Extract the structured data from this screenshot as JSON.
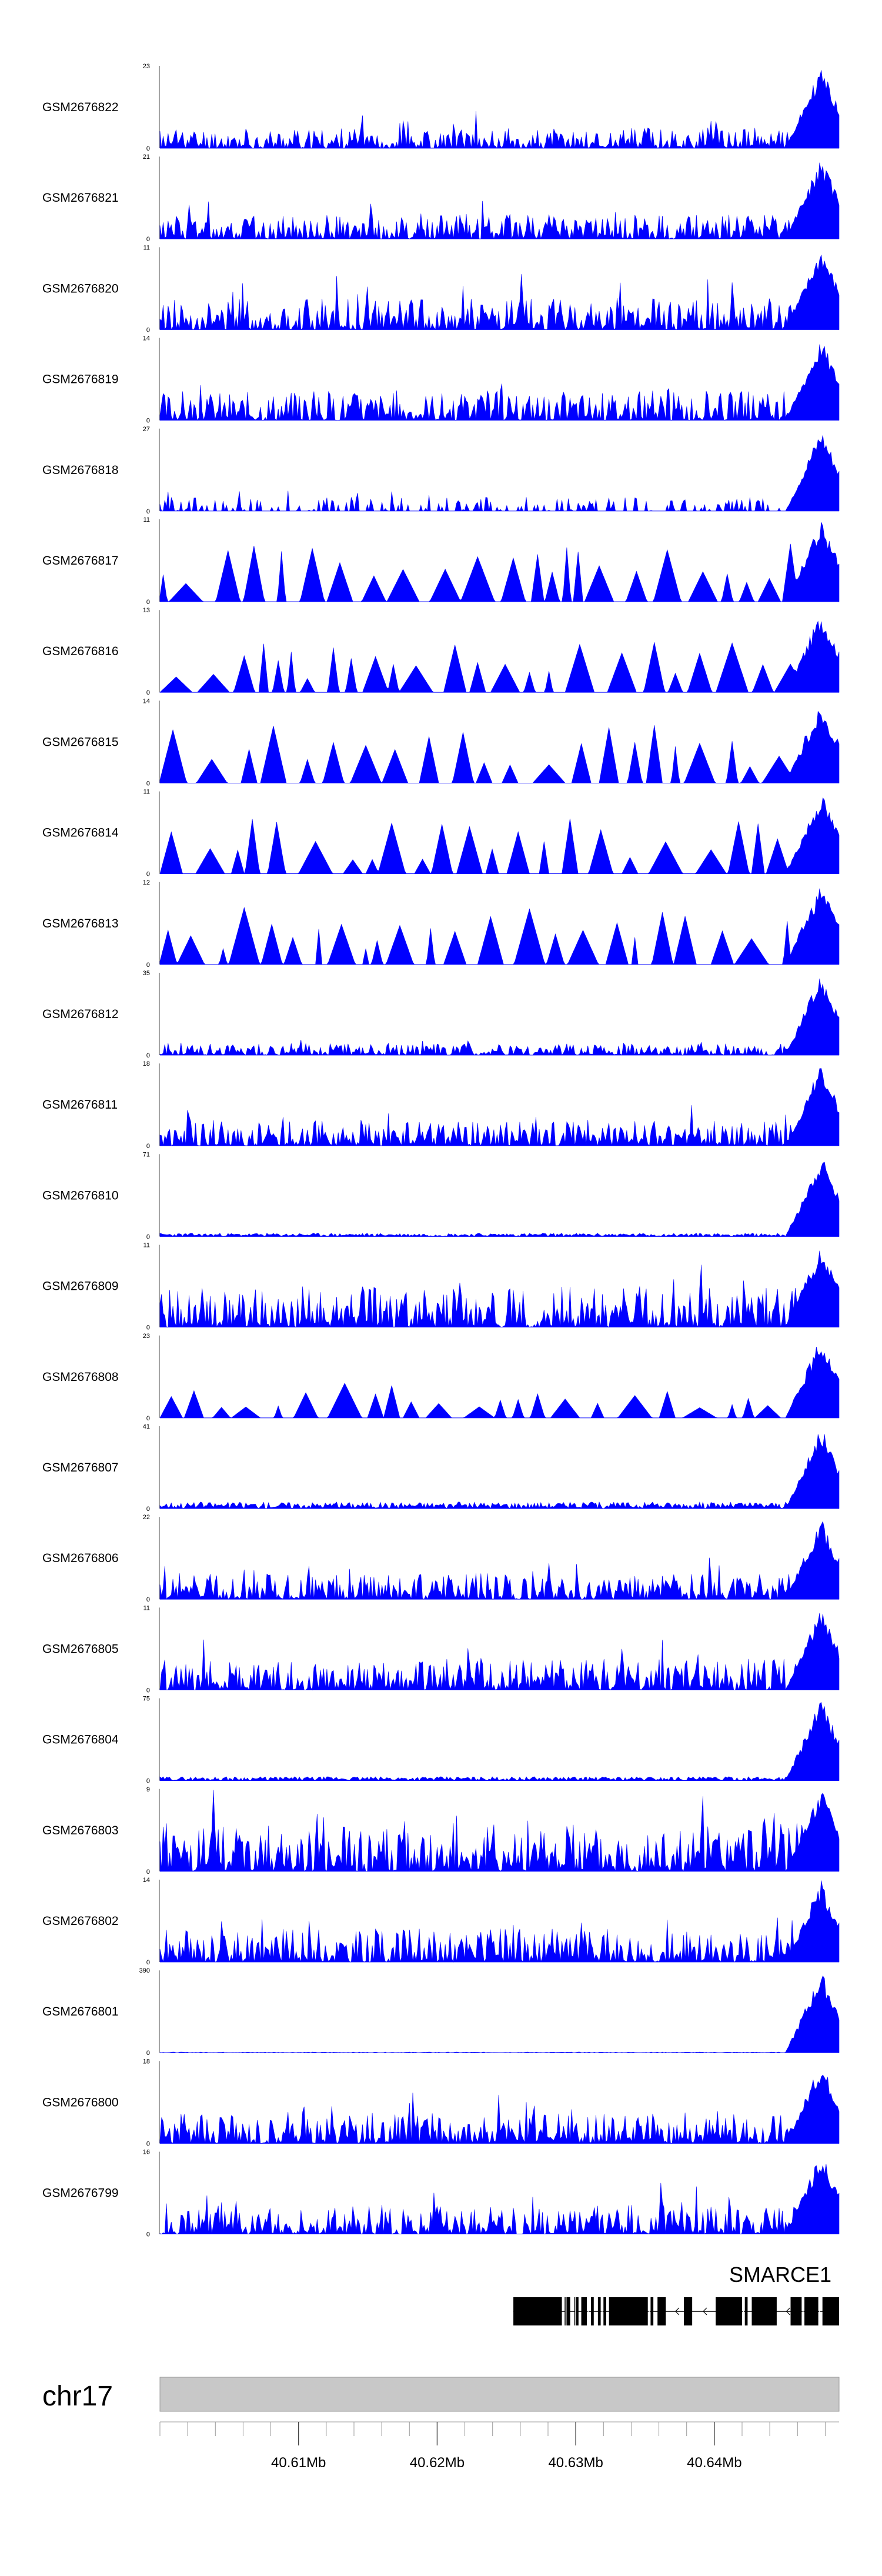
{
  "chart_data": {
    "type": "area",
    "fill_color": "#0000ff",
    "chromosome": "chr17",
    "x_range_mb": [
      40.6,
      40.649
    ],
    "x_ticks": [
      {
        "value": 40.61,
        "label": "40.61Mb"
      },
      {
        "value": 40.62,
        "label": "40.62Mb"
      },
      {
        "value": 40.63,
        "label": "40.63Mb"
      },
      {
        "value": 40.64,
        "label": "40.64Mb"
      }
    ],
    "series": [
      {
        "name": "GSM2676822",
        "ymax": 23,
        "ymin": 0,
        "style": "dense",
        "seed": 11,
        "amp": 0.28
      },
      {
        "name": "GSM2676821",
        "ymax": 21,
        "ymin": 0,
        "style": "dense",
        "seed": 12,
        "amp": 0.33
      },
      {
        "name": "GSM2676820",
        "ymax": 11,
        "ymin": 0,
        "style": "dense",
        "seed": 13,
        "amp": 0.42
      },
      {
        "name": "GSM2676819",
        "ymax": 14,
        "ymin": 0,
        "style": "dense",
        "seed": 14,
        "amp": 0.4
      },
      {
        "name": "GSM2676818",
        "ymax": 27,
        "ymin": 0,
        "style": "sparse",
        "seed": 15,
        "amp": 0.28
      },
      {
        "name": "GSM2676817",
        "ymax": 11,
        "ymin": 0,
        "style": "spiky",
        "seed": 16,
        "amp": 0.72
      },
      {
        "name": "GSM2676816",
        "ymax": 13,
        "ymin": 0,
        "style": "spiky",
        "seed": 17,
        "amp": 0.62
      },
      {
        "name": "GSM2676815",
        "ymax": 14,
        "ymin": 0,
        "style": "spiky",
        "seed": 18,
        "amp": 0.72
      },
      {
        "name": "GSM2676814",
        "ymax": 11,
        "ymin": 0,
        "style": "spiky",
        "seed": 19,
        "amp": 0.68
      },
      {
        "name": "GSM2676813",
        "ymax": 12,
        "ymin": 0,
        "style": "spiky",
        "seed": 20,
        "amp": 0.7
      },
      {
        "name": "GSM2676812",
        "ymax": 35,
        "ymin": 0,
        "style": "dense",
        "seed": 21,
        "amp": 0.16
      },
      {
        "name": "GSM2676811",
        "ymax": 18,
        "ymin": 0,
        "style": "dense",
        "seed": 22,
        "amp": 0.34
      },
      {
        "name": "GSM2676810",
        "ymax": 71,
        "ymin": 0,
        "style": "flat",
        "seed": 23,
        "amp": 0.05
      },
      {
        "name": "GSM2676809",
        "ymax": 11,
        "ymin": 0,
        "style": "dense",
        "seed": 24,
        "amp": 0.55
      },
      {
        "name": "GSM2676808",
        "ymax": 23,
        "ymin": 0,
        "style": "spiky",
        "seed": 25,
        "amp": 0.45
      },
      {
        "name": "GSM2676807",
        "ymax": 41,
        "ymin": 0,
        "style": "flat",
        "seed": 26,
        "amp": 0.1
      },
      {
        "name": "GSM2676806",
        "ymax": 22,
        "ymin": 0,
        "style": "dense",
        "seed": 27,
        "amp": 0.35
      },
      {
        "name": "GSM2676805",
        "ymax": 11,
        "ymin": 0,
        "style": "dense",
        "seed": 28,
        "amp": 0.42
      },
      {
        "name": "GSM2676804",
        "ymax": 75,
        "ymin": 0,
        "style": "flat",
        "seed": 29,
        "amp": 0.06
      },
      {
        "name": "GSM2676803",
        "ymax": 9,
        "ymin": 0,
        "style": "dense",
        "seed": 30,
        "amp": 0.65
      },
      {
        "name": "GSM2676802",
        "ymax": 14,
        "ymin": 0,
        "style": "dense",
        "seed": 31,
        "amp": 0.45
      },
      {
        "name": "GSM2676801",
        "ymax": 390,
        "ymin": 0,
        "style": "flat",
        "seed": 32,
        "amp": 0.01
      },
      {
        "name": "GSM2676800",
        "ymax": 18,
        "ymin": 0,
        "style": "dense",
        "seed": 33,
        "amp": 0.42
      },
      {
        "name": "GSM2676799",
        "ymax": 16,
        "ymin": 0,
        "style": "dense",
        "seed": 34,
        "amp": 0.4
      }
    ],
    "gene": {
      "name": "SMARCE1",
      "start_mb": 40.6255,
      "end_mb": 40.649,
      "exons_mb": [
        [
          40.6255,
          40.629
        ],
        [
          40.6292,
          40.6296
        ],
        [
          40.6299,
          40.6302
        ],
        [
          40.6304,
          40.6308
        ],
        [
          40.6311,
          40.6313
        ],
        [
          40.6316,
          40.6318
        ],
        [
          40.632,
          40.6322
        ],
        [
          40.6324,
          40.6352
        ],
        [
          40.6354,
          40.6356
        ],
        [
          40.6359,
          40.6365
        ],
        [
          40.6378,
          40.6384
        ],
        [
          40.6401,
          40.642
        ],
        [
          40.6422,
          40.6424
        ],
        [
          40.6427,
          40.6445
        ],
        [
          40.6455,
          40.6463
        ],
        [
          40.6465,
          40.6475
        ],
        [
          40.6478,
          40.649
        ]
      ]
    }
  }
}
